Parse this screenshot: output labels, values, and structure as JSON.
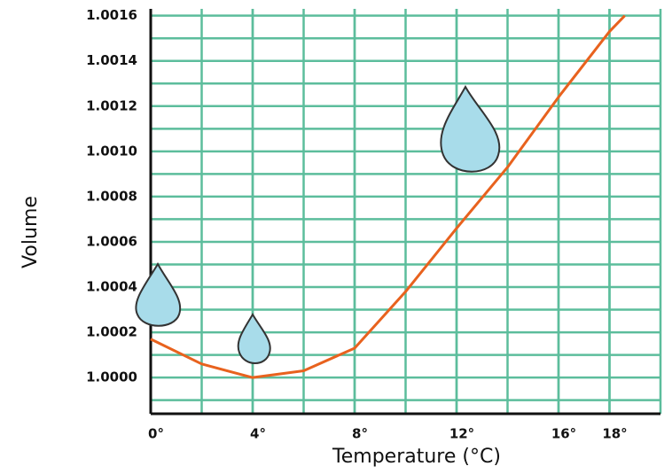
{
  "chart_data": {
    "type": "line",
    "x": [
      0,
      2,
      4,
      6,
      8,
      10,
      12,
      14,
      16,
      18,
      18.6
    ],
    "series": [
      {
        "color": "#e8621e",
        "values": [
          1.00017,
          1.00006,
          1.0,
          1.00003,
          1.00013,
          1.00038,
          1.00066,
          1.00093,
          1.00124,
          1.00153,
          1.0016
        ]
      }
    ],
    "xlim": [
      0,
      20
    ],
    "ylim": [
      0.99984,
      1.00163
    ],
    "xticks": [
      {
        "value": 0,
        "label": "0°"
      },
      {
        "value": 4,
        "label": "4°"
      },
      {
        "value": 8,
        "label": "8°"
      },
      {
        "value": 12,
        "label": "12°"
      },
      {
        "value": 16,
        "label": "16°"
      },
      {
        "value": 18,
        "label": "18°"
      }
    ],
    "yticks": [
      {
        "value": 1.0,
        "label": "1.0000"
      },
      {
        "value": 1.0002,
        "label": "1.0002"
      },
      {
        "value": 1.0004,
        "label": "1.0004"
      },
      {
        "value": 1.0006,
        "label": "1.0006"
      },
      {
        "value": 1.0008,
        "label": "1.0008"
      },
      {
        "value": 1.001,
        "label": "1.0010"
      },
      {
        "value": 1.0012,
        "label": "1.0012"
      },
      {
        "value": 1.0014,
        "label": "1.0014"
      },
      {
        "value": 1.0016,
        "label": "1.0016"
      }
    ],
    "xlabel": "Temperature (°C)",
    "ylabel": "Volume",
    "grid": true,
    "grid_color": "#5cbd9c"
  }
}
